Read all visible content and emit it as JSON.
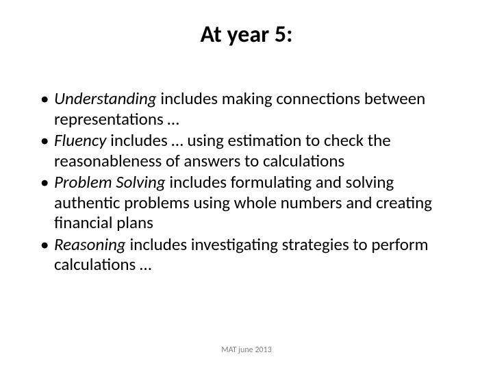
{
  "slide": {
    "title": "At year 5:",
    "title_fontsize": 34,
    "bullets": [
      {
        "lead": "Understanding",
        "rest": " includes making connections between representations …"
      },
      {
        "lead": "Fluency",
        "rest": " includes … using estimation to check the reasonableness of answers to calculations"
      },
      {
        "lead": "Problem Solving",
        "rest": " includes formulating and solving authentic problems using whole numbers and creating financial plans"
      },
      {
        "lead": "Reasoning",
        "rest": " includes investigating strategies to perform calculations …"
      }
    ],
    "body_fontsize": 25,
    "footer": "MAT june 2013",
    "footer_fontsize": 12,
    "text_color": "#000000",
    "footer_color": "#7f7f7f",
    "background_color": "#ffffff"
  }
}
